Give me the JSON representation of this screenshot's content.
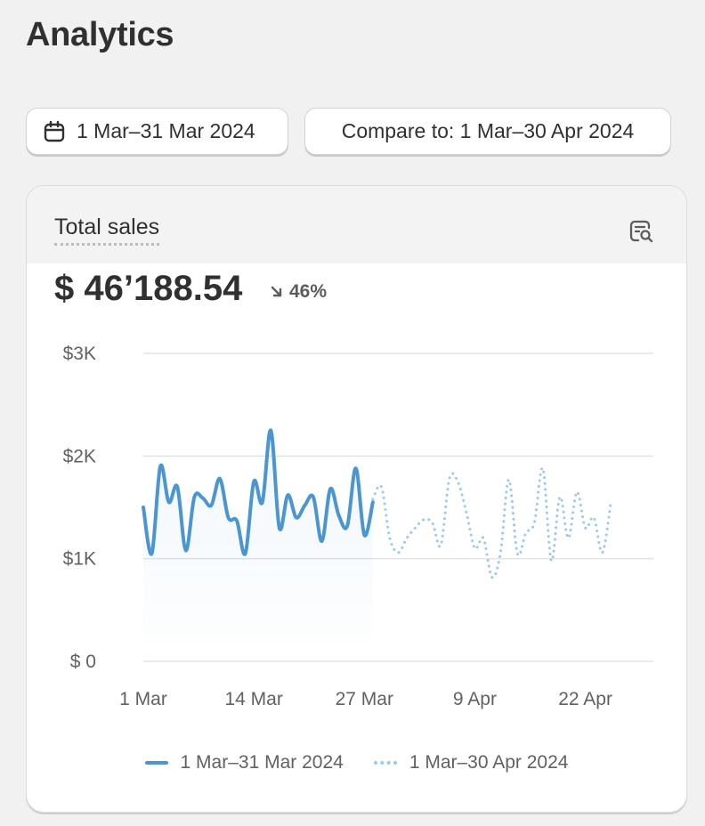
{
  "page": {
    "title": "Analytics"
  },
  "toolbar": {
    "date_range_label": "1 Mar–31 Mar 2024",
    "date_range_icon": "calendar-icon",
    "compare_label": "Compare to: 1 Mar–30 Apr 2024"
  },
  "card": {
    "title": "Total sales",
    "explore_icon": "explore-data-icon",
    "total_value": "$ 46’188.54",
    "change_percent": "46%",
    "change_direction": "down"
  },
  "colors": {
    "primary_series": "#4b96d1",
    "comparison_series": "#9ec9e7",
    "grid": "#e3e3e3"
  },
  "chart_data": {
    "type": "line",
    "title": "Total sales",
    "xlabel": "",
    "ylabel": "",
    "ylim": [
      0,
      3000
    ],
    "y_ticks": [
      {
        "value": 0,
        "label": "$ 0"
      },
      {
        "value": 1000,
        "label": "$1K"
      },
      {
        "value": 2000,
        "label": "$2K"
      },
      {
        "value": 3000,
        "label": "$3K"
      }
    ],
    "x_ticks": [
      {
        "index": 0,
        "label": "1 Mar"
      },
      {
        "index": 13,
        "label": "14 Mar"
      },
      {
        "index": 26,
        "label": "27 Mar"
      },
      {
        "index": 39,
        "label": "9 Apr"
      },
      {
        "index": 52,
        "label": "22 Apr"
      }
    ],
    "x_count": 61,
    "grid": true,
    "legend_position": "bottom",
    "series": [
      {
        "name": "1 Mar–31 Mar 2024",
        "style": "solid",
        "values": [
          1500,
          1050,
          1900,
          1550,
          1700,
          1080,
          1600,
          1590,
          1520,
          1780,
          1400,
          1370,
          1050,
          1750,
          1550,
          2250,
          1300,
          1620,
          1400,
          1520,
          1600,
          1170,
          1680,
          1420,
          1320,
          1880,
          1230,
          1550
        ]
      },
      {
        "name": "1 Mar–30 Apr 2024",
        "style": "dotted",
        "values": [
          1580,
          1700,
          1200,
          1060,
          1200,
          1300,
          1380,
          1350,
          1130,
          1780,
          1750,
          1450,
          1100,
          1200,
          820,
          1050,
          1770,
          1050,
          1250,
          1350,
          1880,
          980,
          1600,
          1200,
          1650,
          1300,
          1400,
          1060,
          1550
        ]
      }
    ]
  }
}
